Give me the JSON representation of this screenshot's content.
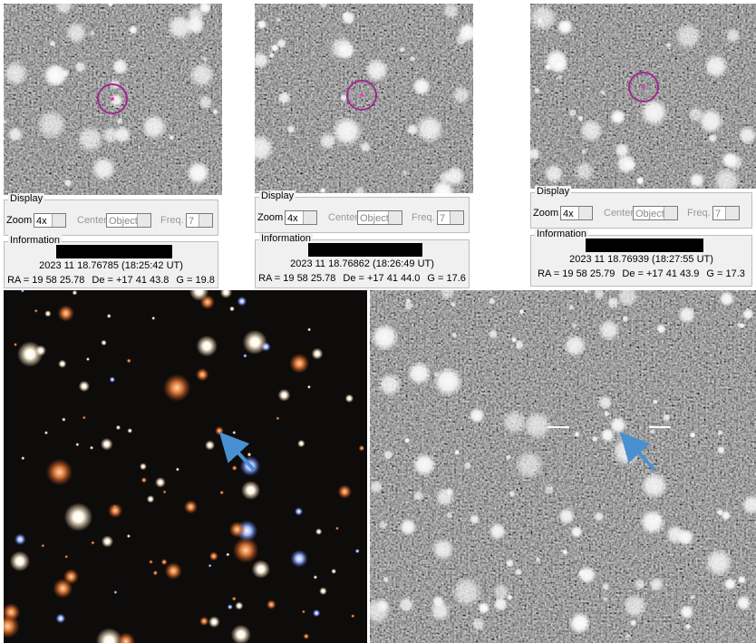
{
  "panels": [
    {
      "display_label": "Display",
      "zoom_label": "Zoom",
      "zoom_value": "4x",
      "center_label": "Center",
      "center_value": "Object",
      "freq_label": "Freq.",
      "freq_value": "7",
      "information_label": "Information",
      "date": "2023 11 18.76785 (18:25:42 UT)",
      "ra": "RA = 19 58 25.78",
      "de": "De = +17 41 43.8",
      "g": "G = 19.8"
    },
    {
      "display_label": "Display",
      "zoom_label": "Zoom",
      "zoom_value": "4x",
      "center_label": "Center",
      "center_value": "Object",
      "freq_label": "Freq.",
      "freq_value": "7",
      "information_label": "Information",
      "date": "2023 11 18.76862 (18:26:49 UT)",
      "ra": "RA = 19 58 25.78",
      "de": "De = +17 41 44.0",
      "g": "G = 17.6"
    },
    {
      "display_label": "Display",
      "zoom_label": "Zoom",
      "zoom_value": "4x",
      "center_label": "Center",
      "center_value": "Object",
      "freq_label": "Freq.",
      "freq_value": "7",
      "information_label": "Information",
      "date": "2023 11 18.76939 (18:27:55 UT)",
      "ra": "RA = 19 58 25.79",
      "de": "De = +17 41 43.9",
      "g": "G = 17.3"
    }
  ]
}
